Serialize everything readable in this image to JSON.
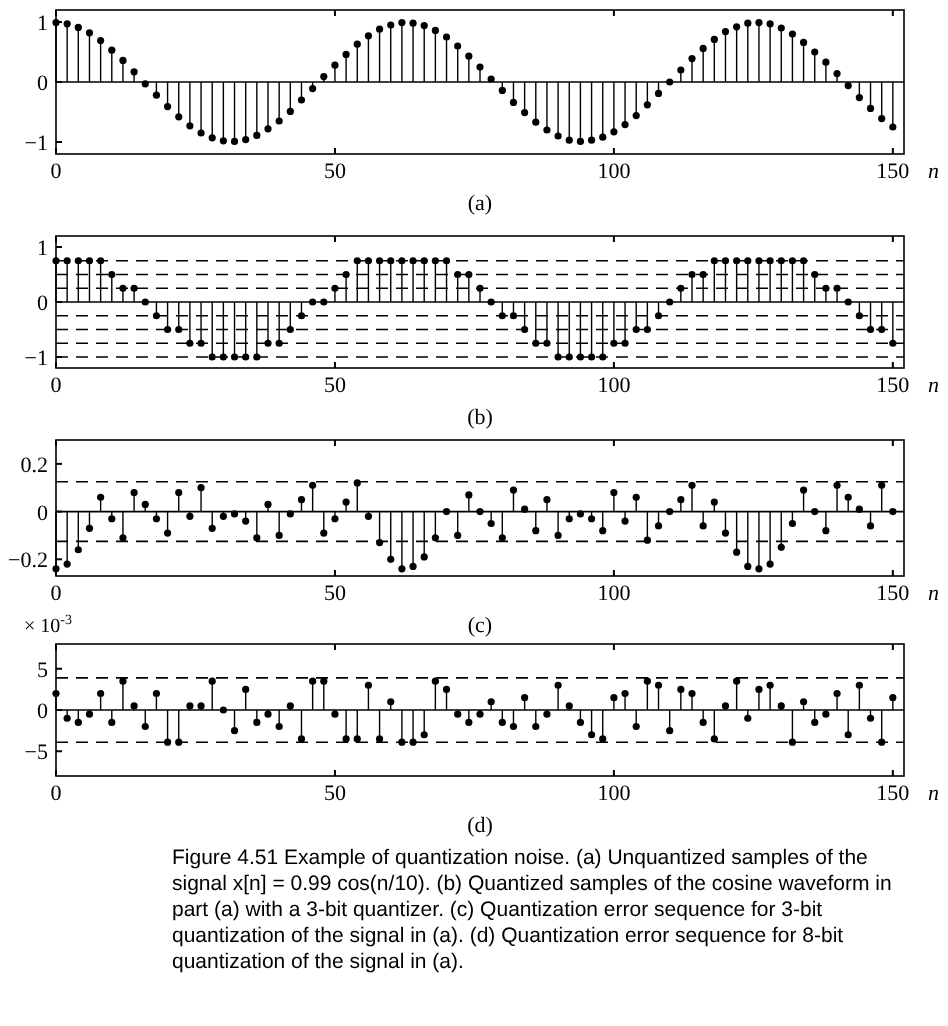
{
  "chart_data": [
    {
      "type": "lollipop",
      "title": "(a)",
      "xlabel": "n",
      "xlim": [
        0,
        152
      ],
      "xticks": [
        0,
        50,
        100,
        150
      ],
      "ylim": [
        -1.2,
        1.2
      ],
      "yticks": [
        -1,
        0,
        1
      ],
      "marker": "circle",
      "x": [
        0,
        2,
        4,
        6,
        8,
        10,
        12,
        14,
        16,
        18,
        20,
        22,
        24,
        26,
        28,
        30,
        32,
        34,
        36,
        38,
        40,
        42,
        44,
        46,
        48,
        50,
        52,
        54,
        56,
        58,
        60,
        62,
        64,
        66,
        68,
        70,
        72,
        74,
        76,
        78,
        80,
        82,
        84,
        86,
        88,
        90,
        92,
        94,
        96,
        98,
        100,
        102,
        104,
        106,
        108,
        110,
        112,
        114,
        116,
        118,
        120,
        122,
        124,
        126,
        128,
        130,
        132,
        134,
        136,
        138,
        140,
        142,
        144,
        146,
        148,
        150
      ],
      "values": [
        0.99,
        0.97,
        0.91,
        0.82,
        0.69,
        0.53,
        0.36,
        0.17,
        -0.03,
        -0.22,
        -0.41,
        -0.58,
        -0.73,
        -0.85,
        -0.93,
        -0.98,
        -0.99,
        -0.96,
        -0.89,
        -0.78,
        -0.65,
        -0.49,
        -0.3,
        -0.11,
        0.09,
        0.28,
        0.46,
        0.63,
        0.77,
        0.88,
        0.95,
        0.99,
        0.98,
        0.94,
        0.86,
        0.75,
        0.6,
        0.43,
        0.25,
        0.05,
        -0.14,
        -0.34,
        -0.51,
        -0.67,
        -0.8,
        -0.9,
        -0.97,
        -0.99,
        -0.97,
        -0.92,
        -0.83,
        -0.71,
        -0.56,
        -0.38,
        -0.19,
        0.0,
        0.2,
        0.39,
        0.56,
        0.71,
        0.84,
        0.92,
        0.98,
        0.99,
        0.97,
        0.9,
        0.8,
        0.66,
        0.5,
        0.33,
        0.14,
        -0.06,
        -0.26,
        -0.44,
        -0.61,
        -0.75
      ]
    },
    {
      "type": "lollipop",
      "title": "(b)",
      "xlabel": "n",
      "xlim": [
        0,
        152
      ],
      "xticks": [
        0,
        50,
        100,
        150
      ],
      "ylim": [
        -1.2,
        1.2
      ],
      "yticks": [
        -1,
        0,
        1
      ],
      "marker": "circle",
      "ref_lines": [
        {
          "axis": "y",
          "value": 0.75,
          "line_style": "dashed"
        },
        {
          "axis": "y",
          "value": 0.5,
          "line_style": "dashed"
        },
        {
          "axis": "y",
          "value": 0.25,
          "line_style": "dashed"
        },
        {
          "axis": "y",
          "value": -0.25,
          "line_style": "dashed"
        },
        {
          "axis": "y",
          "value": -0.5,
          "line_style": "dashed"
        },
        {
          "axis": "y",
          "value": -0.75,
          "line_style": "dashed"
        },
        {
          "axis": "y",
          "value": -1,
          "line_style": "dashed"
        }
      ],
      "x": [
        0,
        2,
        4,
        6,
        8,
        10,
        12,
        14,
        16,
        18,
        20,
        22,
        24,
        26,
        28,
        30,
        32,
        34,
        36,
        38,
        40,
        42,
        44,
        46,
        48,
        50,
        52,
        54,
        56,
        58,
        60,
        62,
        64,
        66,
        68,
        70,
        72,
        74,
        76,
        78,
        80,
        82,
        84,
        86,
        88,
        90,
        92,
        94,
        96,
        98,
        100,
        102,
        104,
        106,
        108,
        110,
        112,
        114,
        116,
        118,
        120,
        122,
        124,
        126,
        128,
        130,
        132,
        134,
        136,
        138,
        140,
        142,
        144,
        146,
        148,
        150
      ],
      "values": [
        0.75,
        0.75,
        0.75,
        0.75,
        0.75,
        0.5,
        0.25,
        0.25,
        0,
        -0.25,
        -0.5,
        -0.5,
        -0.75,
        -0.75,
        -1,
        -1,
        -1,
        -1,
        -1,
        -0.75,
        -0.75,
        -0.5,
        -0.25,
        0,
        0,
        0.25,
        0.5,
        0.75,
        0.75,
        0.75,
        0.75,
        0.75,
        0.75,
        0.75,
        0.75,
        0.75,
        0.5,
        0.5,
        0.25,
        0,
        -0.25,
        -0.25,
        -0.5,
        -0.75,
        -0.75,
        -1,
        -1,
        -1,
        -1,
        -1,
        -0.75,
        -0.75,
        -0.5,
        -0.5,
        -0.25,
        0,
        0.25,
        0.5,
        0.5,
        0.75,
        0.75,
        0.75,
        0.75,
        0.75,
        0.75,
        0.75,
        0.75,
        0.75,
        0.5,
        0.25,
        0.25,
        0,
        -0.25,
        -0.5,
        -0.5,
        -0.75
      ]
    },
    {
      "type": "lollipop",
      "title": "(c)",
      "xlabel": "n",
      "xlim": [
        0,
        152
      ],
      "xticks": [
        0,
        50,
        100,
        150
      ],
      "ylim": [
        -0.27,
        0.3
      ],
      "yticks": [
        -0.2,
        0,
        0.2
      ],
      "marker": "circle",
      "ref_lines": [
        {
          "axis": "y",
          "value": 0.125,
          "line_style": "dashed"
        },
        {
          "axis": "y",
          "value": -0.125,
          "line_style": "dashed"
        }
      ],
      "x": [
        0,
        2,
        4,
        6,
        8,
        10,
        12,
        14,
        16,
        18,
        20,
        22,
        24,
        26,
        28,
        30,
        32,
        34,
        36,
        38,
        40,
        42,
        44,
        46,
        48,
        50,
        52,
        54,
        56,
        58,
        60,
        62,
        64,
        66,
        68,
        70,
        72,
        74,
        76,
        78,
        80,
        82,
        84,
        86,
        88,
        90,
        92,
        94,
        96,
        98,
        100,
        102,
        104,
        106,
        108,
        110,
        112,
        114,
        116,
        118,
        120,
        122,
        124,
        126,
        128,
        130,
        132,
        134,
        136,
        138,
        140,
        142,
        144,
        146,
        148,
        150
      ],
      "values": [
        -0.24,
        -0.22,
        -0.16,
        -0.07,
        0.06,
        -0.03,
        -0.11,
        0.08,
        0.03,
        -0.03,
        -0.09,
        0.08,
        -0.02,
        0.1,
        -0.07,
        -0.02,
        -0.01,
        -0.04,
        -0.11,
        0.03,
        -0.1,
        -0.01,
        0.05,
        0.11,
        -0.09,
        -0.03,
        0.04,
        0.12,
        -0.02,
        -0.13,
        -0.2,
        -0.24,
        -0.23,
        -0.19,
        -0.11,
        0.0,
        -0.1,
        0.07,
        0.0,
        -0.05,
        -0.11,
        0.09,
        0.01,
        -0.08,
        0.05,
        -0.1,
        -0.03,
        -0.01,
        -0.03,
        -0.08,
        0.08,
        -0.04,
        0.06,
        -0.12,
        -0.06,
        0.0,
        0.05,
        0.11,
        -0.06,
        0.04,
        -0.09,
        -0.17,
        -0.23,
        -0.24,
        -0.22,
        -0.15,
        -0.05,
        0.09,
        0.0,
        -0.08,
        0.11,
        0.06,
        0.01,
        -0.06,
        0.11,
        0.0
      ]
    },
    {
      "type": "lollipop",
      "title": "(d)",
      "xlabel": "n",
      "ylabel": "× 10$^{-3}$",
      "xlim": [
        0,
        152
      ],
      "xticks": [
        0,
        50,
        100,
        150
      ],
      "ylim": [
        -8,
        8
      ],
      "yticks": [
        -5,
        0,
        5
      ],
      "marker": "circle",
      "ref_lines": [
        {
          "axis": "y",
          "value": 3.9,
          "line_style": "dashed"
        },
        {
          "axis": "y",
          "value": -3.9,
          "line_style": "dashed"
        }
      ],
      "x": [
        0,
        2,
        4,
        6,
        8,
        10,
        12,
        14,
        16,
        18,
        20,
        22,
        24,
        26,
        28,
        30,
        32,
        34,
        36,
        38,
        40,
        42,
        44,
        46,
        48,
        50,
        52,
        54,
        56,
        58,
        60,
        62,
        64,
        66,
        68,
        70,
        72,
        74,
        76,
        78,
        80,
        82,
        84,
        86,
        88,
        90,
        92,
        94,
        96,
        98,
        100,
        102,
        104,
        106,
        108,
        110,
        112,
        114,
        116,
        118,
        120,
        122,
        124,
        126,
        128,
        130,
        132,
        134,
        136,
        138,
        140,
        142,
        144,
        146,
        148,
        150
      ],
      "values": [
        2,
        -1,
        -1.5,
        -0.5,
        2,
        -1.5,
        3.5,
        0.5,
        -2,
        2,
        -3.9,
        -3.9,
        0.5,
        0.5,
        3.5,
        0,
        -2.5,
        2.5,
        -1.5,
        -0.5,
        -2,
        0.5,
        -3.5,
        3.5,
        3.5,
        -0.5,
        -3.5,
        -3.5,
        3,
        -3.5,
        1,
        -3.9,
        -3.9,
        -3,
        3.5,
        2.5,
        -0.5,
        -1.5,
        -0.5,
        1,
        -1.5,
        -2,
        1.5,
        -2,
        -0.5,
        3,
        0.5,
        -1.5,
        -3,
        -3.5,
        1.5,
        2,
        -2,
        3.5,
        3,
        -2.5,
        2.5,
        2,
        -1.5,
        -3.5,
        0.5,
        3.5,
        -1,
        2.5,
        3,
        0.5,
        -3.9,
        1,
        -1.5,
        -0.5,
        2,
        -3,
        3,
        -1,
        -3.9,
        1.5
      ],
      "annotations": [
        "Figure 4.51 Example of quantization noise. (a) Unquantized samples of the signal x[n] = 0.99 cos(n/10). (b) Quantized samples of the cosine waveform in part (a) with a 3-bit quantizer. (c) Quantization error sequence for 3-bit quantization of the signal in (a). (d) Quantization error sequence for 8-bit quantization of the signal in (a)."
      ]
    }
  ]
}
